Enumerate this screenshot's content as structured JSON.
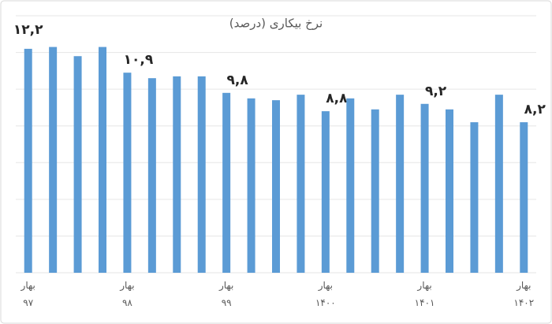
{
  "chart_data": {
    "type": "bar",
    "title": "نرخ بیکاری (درصد)",
    "categories": [
      "بهار ۹۷",
      null,
      null,
      null,
      "بهار ۹۸",
      null,
      null,
      null,
      "بهار ۹۹",
      null,
      null,
      null,
      "بهار ۱۴۰۰",
      null,
      null,
      null,
      "بهار ۱۴۰۱",
      null,
      null,
      null,
      "بهار ۱۴۰۲"
    ],
    "values": [
      12.2,
      12.3,
      11.8,
      12.3,
      10.9,
      10.6,
      10.7,
      10.7,
      9.8,
      9.5,
      9.4,
      9.7,
      8.8,
      9.5,
      8.9,
      9.7,
      9.2,
      8.9,
      8.2,
      9.7,
      8.2
    ],
    "value_labels": [
      "۱۲,۲",
      null,
      null,
      null,
      "۱۰,۹",
      null,
      null,
      null,
      "۹,۸",
      null,
      null,
      null,
      "۸,۸",
      null,
      null,
      null,
      "۹,۲",
      null,
      null,
      null,
      "۸,۲"
    ],
    "color": "#5b9bd5",
    "ylim": [
      0,
      14
    ],
    "yticks": [
      0,
      2,
      4,
      6,
      8,
      10,
      12,
      14
    ],
    "grid": true
  }
}
